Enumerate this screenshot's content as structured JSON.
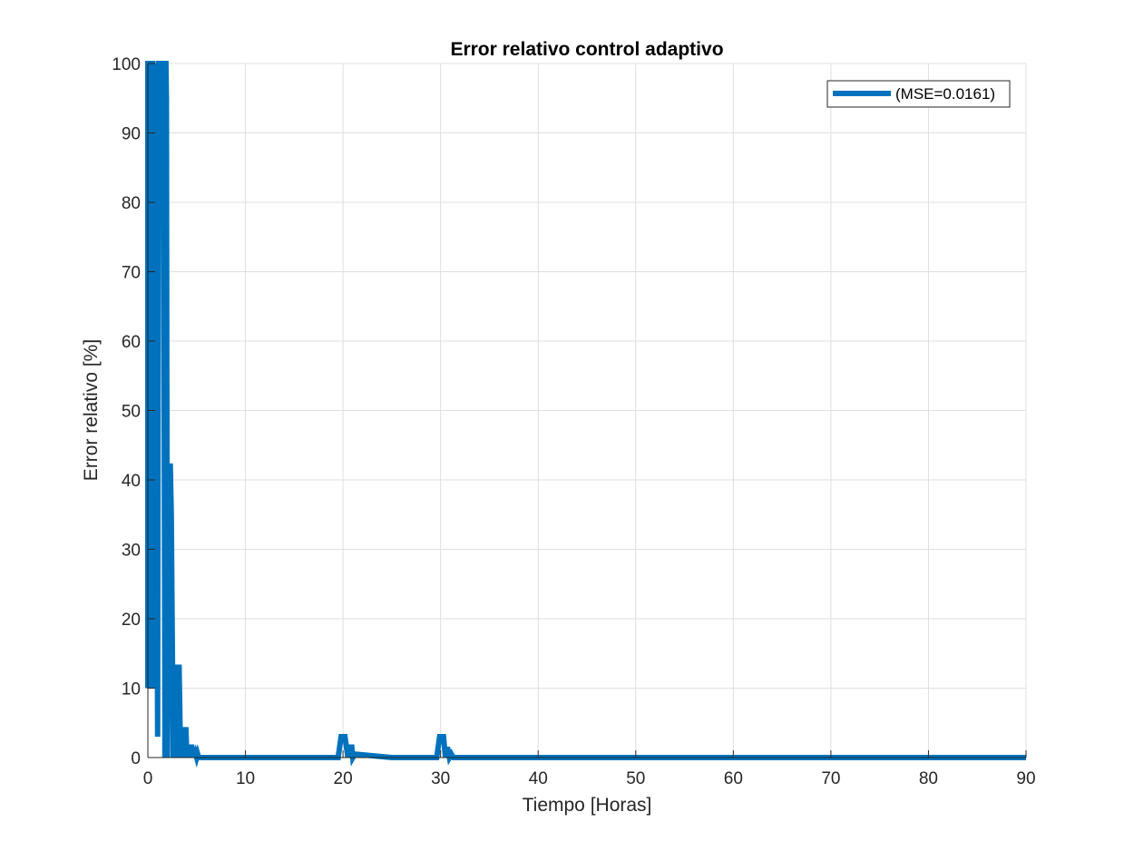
{
  "chart_data": {
    "type": "line",
    "title": "Error relativo control adaptivo",
    "xlabel": "Tiempo [Horas]",
    "ylabel": "Error relativo [%]",
    "xlim": [
      0,
      90
    ],
    "ylim": [
      0,
      100
    ],
    "xticks": [
      0,
      10,
      20,
      30,
      40,
      50,
      60,
      70,
      80,
      90
    ],
    "yticks": [
      0,
      10,
      20,
      30,
      40,
      50,
      60,
      70,
      80,
      90,
      100
    ],
    "grid": true,
    "legend_position": "top-right",
    "series": [
      {
        "name": "(MSE=0.0161)",
        "color": "#0072BD",
        "x": [
          0,
          0,
          0.05,
          0.1,
          0.3,
          0.5,
          0.6,
          0.8,
          1.0,
          1.1,
          1.2,
          1.4,
          1.5,
          1.6,
          1.75,
          1.8,
          1.85,
          1.9,
          2.0,
          2.05,
          2.2,
          2.3,
          2.4,
          2.6,
          2.75,
          2.9,
          3.0,
          3.1,
          3.2,
          3.35,
          3.5,
          3.6,
          3.7,
          3.8,
          3.9,
          4.0,
          4.1,
          4.2,
          4.3,
          4.4,
          4.5,
          4.6,
          4.7,
          4.8,
          4.9,
          5.0,
          5.1,
          5.2,
          5.3,
          5.4,
          10,
          15,
          19.5,
          19.8,
          20.0,
          20.2,
          20.5,
          20.7,
          20.9,
          21.0,
          21.2,
          25,
          29.6,
          29.9,
          30.1,
          30.3,
          30.5,
          30.7,
          30.9,
          31.1,
          31.3,
          40,
          50,
          60,
          70,
          80,
          90
        ],
        "y": [
          10,
          100,
          100,
          10,
          100,
          100,
          10,
          100,
          3,
          100,
          100,
          100,
          90,
          100,
          0,
          100,
          100,
          95,
          0,
          42,
          42,
          42,
          35,
          0,
          13,
          13,
          0,
          13,
          13,
          0,
          4,
          4,
          0,
          4,
          4,
          0,
          1.5,
          1.5,
          0,
          1.5,
          1.5,
          0,
          1.5,
          0,
          0.5,
          0,
          0.5,
          0,
          0,
          0,
          0,
          0,
          0,
          3,
          3,
          3,
          0,
          1.5,
          1.5,
          0,
          0.5,
          0,
          0,
          3,
          3,
          3,
          0,
          1.5,
          0,
          0.5,
          0,
          0,
          0,
          0,
          0,
          0,
          0
        ]
      }
    ]
  }
}
